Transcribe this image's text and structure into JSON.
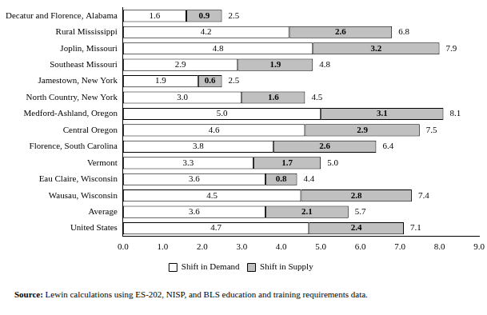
{
  "chart_data": {
    "type": "bar",
    "orientation": "horizontal",
    "stacked": true,
    "data_labels": true,
    "grid": false,
    "legend": "bottom",
    "categories": [
      "Decatur and Florence, Alabama",
      "Rural Mississippi",
      "Joplin, Missouri",
      "Southeast Missouri",
      "Jamestown, New York",
      "North Country, New York",
      "Medford-Ashland, Oregon",
      "Central Oregon",
      "Florence, South Carolina",
      "Vermont",
      "Eau Claire, Wisconsin",
      "Wausau, Wisconsin",
      "Average",
      "United States"
    ],
    "series": [
      {
        "name": "Shift in Demand",
        "color": "#ffffff",
        "values": [
          1.6,
          4.2,
          4.8,
          2.9,
          1.9,
          3.0,
          5.0,
          4.6,
          3.8,
          3.3,
          3.6,
          4.5,
          3.6,
          4.7
        ],
        "value_labels": [
          "1.6",
          "4.2",
          "4.8",
          "2.9",
          "1.9",
          "3.0",
          "5.0",
          "4.6",
          "3.8",
          "3.3",
          "3.6",
          "4.5",
          "3.6",
          "4.7"
        ]
      },
      {
        "name": "Shift in Supply",
        "color": "#c0c0c0",
        "values": [
          0.9,
          2.6,
          3.2,
          1.9,
          0.6,
          1.6,
          3.1,
          2.9,
          2.6,
          1.7,
          0.8,
          2.8,
          2.1,
          2.4
        ],
        "value_labels": [
          "0.9",
          "2.6",
          "3.2",
          "1.9",
          "0.6",
          "1.6",
          "3.1",
          "2.9",
          "2.6",
          "1.7",
          "0.8",
          "2.8",
          "2.1",
          "2.4"
        ]
      }
    ],
    "totals": [
      2.5,
      6.8,
      7.9,
      4.8,
      2.5,
      4.5,
      8.1,
      7.5,
      6.4,
      5.0,
      4.4,
      7.4,
      5.7,
      7.1
    ],
    "total_labels": [
      "2.5",
      "6.8",
      "7.9",
      "4.8",
      "2.5",
      "4.5",
      "8.1",
      "7.5",
      "6.4",
      "5.0",
      "4.4",
      "7.4",
      "5.7",
      "7.1"
    ],
    "xlim": [
      0,
      9
    ],
    "xticks": [
      {
        "value": 0,
        "label": "0.0"
      },
      {
        "value": 1,
        "label": "1.0"
      },
      {
        "value": 2,
        "label": "2.0"
      },
      {
        "value": 3,
        "label": "3.0"
      },
      {
        "value": 4,
        "label": "4.0"
      },
      {
        "value": 5,
        "label": "5.0"
      },
      {
        "value": 6,
        "label": "6.0"
      },
      {
        "value": 7,
        "label": "7.0"
      },
      {
        "value": 8,
        "label": "8.0"
      },
      {
        "value": 9,
        "label": "9.0"
      }
    ],
    "source": {
      "label": "Source:",
      "text": "Lewin calculations using ES-202, NISP, and BLS education and training requirements data."
    }
  }
}
